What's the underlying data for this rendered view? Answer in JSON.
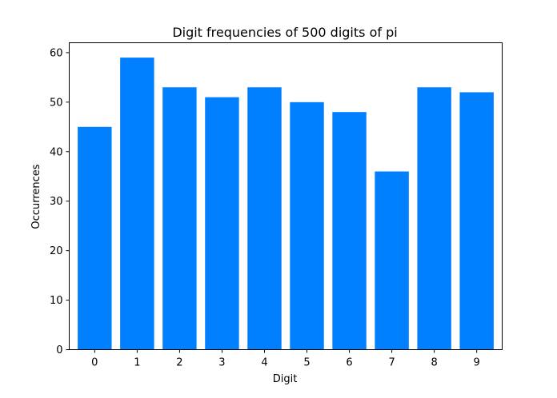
{
  "chart_data": {
    "type": "bar",
    "title": "Digit frequencies of 500 digits of pi",
    "xlabel": "Digit",
    "ylabel": "Occurrences",
    "categories": [
      "0",
      "1",
      "2",
      "3",
      "4",
      "5",
      "6",
      "7",
      "8",
      "9"
    ],
    "values": [
      45,
      59,
      53,
      51,
      53,
      50,
      48,
      36,
      53,
      52
    ],
    "yticks": [
      "0",
      "10",
      "20",
      "30",
      "40",
      "50",
      "60"
    ],
    "ylim": [
      0,
      62
    ],
    "grid": false,
    "legend": "none",
    "bar_color": "#007fff"
  }
}
